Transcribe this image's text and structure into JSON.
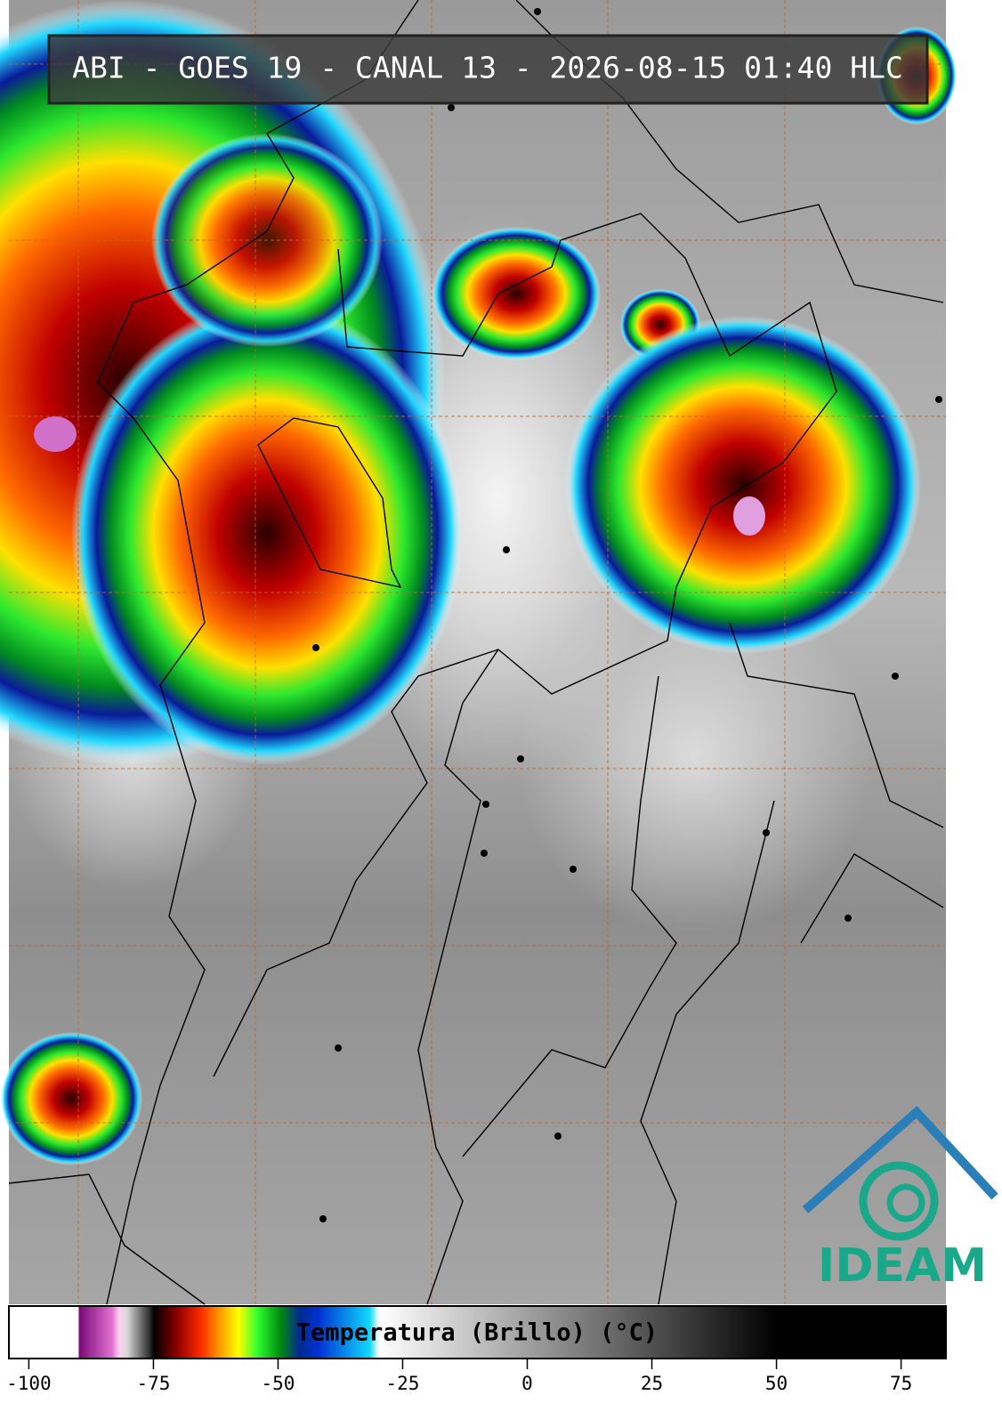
{
  "header": {
    "title": "ABI - GOES 19 - CANAL 13 - 2026-08-15 01:40 HLC"
  },
  "colorbar": {
    "label": "Temperatura (Brillo) (°C)",
    "lim": [
      -104,
      84
    ],
    "ticks": [
      -100,
      -75,
      -50,
      -25,
      0,
      25,
      50,
      75
    ]
  },
  "logo": {
    "text": "IDEAM"
  }
}
